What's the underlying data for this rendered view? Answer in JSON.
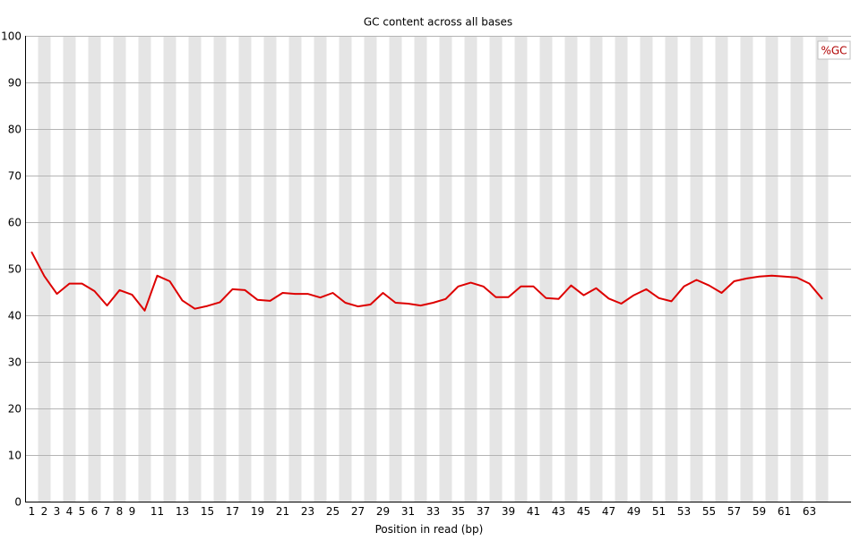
{
  "chart_data": {
    "type": "line",
    "title": "GC content across all bases",
    "xlabel": "Position in read (bp)",
    "ylabel": "",
    "ylim": [
      0,
      100
    ],
    "yticks": [
      0,
      10,
      20,
      30,
      40,
      50,
      60,
      70,
      80,
      90,
      100
    ],
    "x": [
      1,
      2,
      3,
      4,
      5,
      6,
      7,
      8,
      9,
      10,
      11,
      12,
      13,
      14,
      15,
      16,
      17,
      18,
      19,
      20,
      21,
      22,
      23,
      24,
      25,
      26,
      27,
      28,
      29,
      30,
      31,
      32,
      33,
      34,
      35,
      36,
      37,
      38,
      39,
      40,
      41,
      42,
      43,
      44,
      45,
      46,
      47,
      48,
      49,
      50,
      51,
      52,
      53,
      54,
      55,
      56,
      57,
      58,
      59,
      60,
      61,
      62,
      63,
      64
    ],
    "xtick_labels": [
      "1",
      "2",
      "3",
      "4",
      "5",
      "6",
      "7",
      "8",
      "9",
      "11",
      "13",
      "15",
      "17",
      "19",
      "21",
      "23",
      "25",
      "27",
      "29",
      "31",
      "33",
      "35",
      "37",
      "39",
      "41",
      "43",
      "45",
      "47",
      "49",
      "51",
      "53",
      "55",
      "57",
      "59",
      "61",
      "63"
    ],
    "grid": true,
    "legend_position": "top-right",
    "series": [
      {
        "name": "%GC",
        "color": "#dd0000",
        "values": [
          53.5,
          48.4,
          44.6,
          46.8,
          46.8,
          45.2,
          42.1,
          45.4,
          44.4,
          41.0,
          48.5,
          47.3,
          43.2,
          41.4,
          42.0,
          42.8,
          45.6,
          45.4,
          43.3,
          43.1,
          44.8,
          44.6,
          44.6,
          43.8,
          44.8,
          42.7,
          41.9,
          42.3,
          44.8,
          42.7,
          42.5,
          42.1,
          42.7,
          43.5,
          46.2,
          47.0,
          46.2,
          43.9,
          43.9,
          46.2,
          46.2,
          43.7,
          43.5,
          46.4,
          44.3,
          45.8,
          43.6,
          42.5,
          44.3,
          45.6,
          43.7,
          43.0,
          46.2,
          47.6,
          46.4,
          44.8,
          47.3,
          47.9,
          48.3,
          48.5,
          48.3,
          48.1,
          46.8,
          43.6
        ]
      }
    ]
  }
}
